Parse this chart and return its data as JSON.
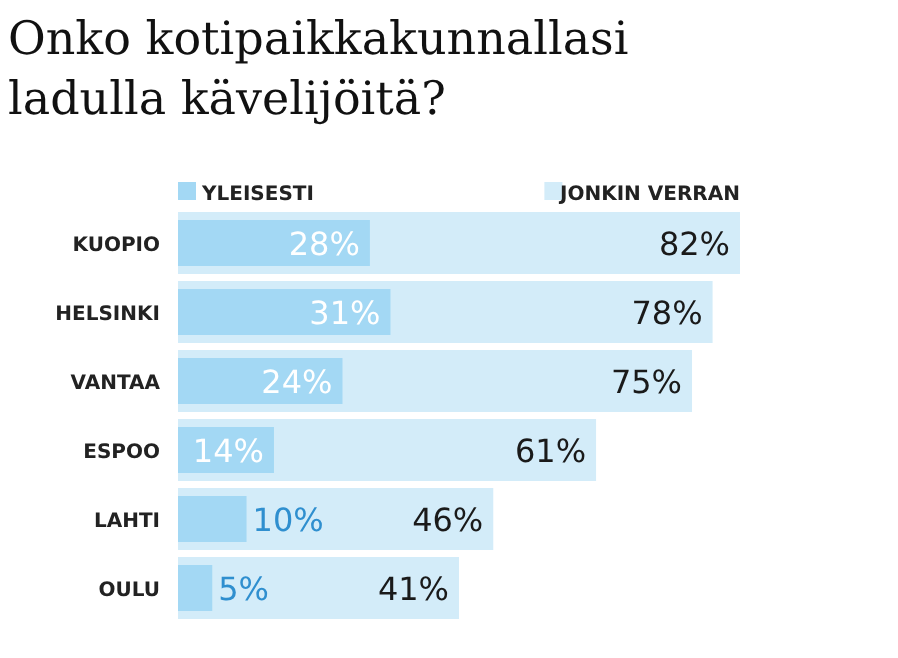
{
  "chart_data": {
    "type": "bar",
    "orientation": "horizontal",
    "title": "Onko kotipaikkakunnallasi ladulla kävelijöitä?",
    "categories": [
      "KUOPIO",
      "HELSINKI",
      "VANTAA",
      "ESPOO",
      "LAHTI",
      "OULU"
    ],
    "legend": "top",
    "series": [
      {
        "name": "JONKIN VERRAN",
        "color": "#d3ecf9",
        "values": [
          82,
          78,
          75,
          61,
          46,
          41
        ],
        "value_labels": [
          "82%",
          "78%",
          "75%",
          "61%",
          "46%",
          "41%"
        ]
      },
      {
        "name": "YLEISESTI",
        "color": "#a3d8f4",
        "values": [
          28,
          31,
          24,
          14,
          10,
          5
        ],
        "value_labels": [
          "28%",
          "31%",
          "24%",
          "14%",
          "10%",
          "5%"
        ]
      }
    ]
  }
}
